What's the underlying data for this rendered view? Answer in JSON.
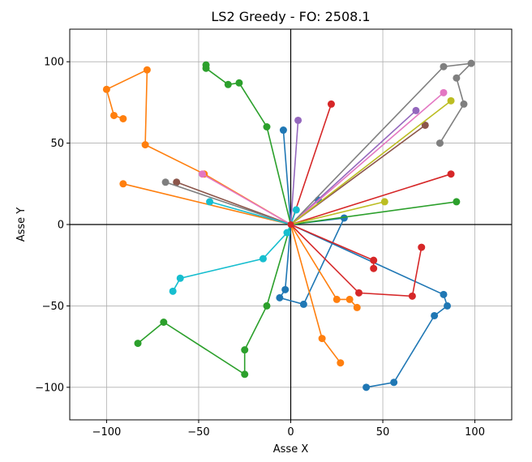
{
  "chart_data": {
    "type": "line",
    "title": "LS2 Greedy - FO: 2508.1",
    "xlabel": "Asse X",
    "ylabel": "Asse Y",
    "xlim": [
      -120,
      120
    ],
    "ylim": [
      -120,
      120
    ],
    "xticks": [
      -100,
      -50,
      0,
      50,
      100
    ],
    "yticks": [
      -100,
      -50,
      0,
      50,
      100
    ],
    "xtick_labels": [
      "−100",
      "−50",
      "0",
      "50",
      "100"
    ],
    "ytick_labels": [
      "−100",
      "−50",
      "0",
      "50",
      "100"
    ],
    "grid": true,
    "reference_lines": {
      "x": 0,
      "y": 0
    },
    "depot": [
      0,
      0
    ],
    "series": [
      {
        "color": "#1f77b4",
        "points": [
          [
            0,
            0
          ],
          [
            -4,
            58
          ]
        ]
      },
      {
        "color": "#1f77b4",
        "points": [
          [
            0,
            0
          ],
          [
            15,
            15
          ]
        ]
      },
      {
        "color": "#1f77b4",
        "points": [
          [
            0,
            0
          ],
          [
            29,
            4
          ],
          [
            7,
            -49
          ],
          [
            -6,
            -45
          ],
          [
            -3,
            -40
          ],
          [
            0,
            0
          ]
        ]
      },
      {
        "color": "#1f77b4",
        "points": [
          [
            0,
            0
          ],
          [
            83,
            -43
          ],
          [
            85,
            -50
          ],
          [
            78,
            -56
          ],
          [
            56,
            -97
          ],
          [
            41,
            -100
          ]
        ]
      },
      {
        "color": "#ff7f0e",
        "points": [
          [
            0,
            0
          ],
          [
            -47,
            31
          ],
          [
            -79,
            49
          ],
          [
            -78,
            95
          ],
          [
            -100,
            83
          ],
          [
            -96,
            67
          ],
          [
            -91,
            65
          ]
        ]
      },
      {
        "color": "#ff7f0e",
        "points": [
          [
            0,
            0
          ],
          [
            -91,
            25
          ]
        ]
      },
      {
        "color": "#ff7f0e",
        "points": [
          [
            0,
            0
          ],
          [
            25,
            -46
          ],
          [
            32,
            -46
          ],
          [
            36,
            -51
          ]
        ]
      },
      {
        "color": "#ff7f0e",
        "points": [
          [
            0,
            0
          ],
          [
            17,
            -70
          ],
          [
            27,
            -85
          ]
        ]
      },
      {
        "color": "#2ca02c",
        "points": [
          [
            0,
            0
          ],
          [
            -13,
            60
          ],
          [
            -28,
            87
          ],
          [
            -34,
            86
          ],
          [
            -46,
            96
          ],
          [
            -46,
            98
          ]
        ]
      },
      {
        "color": "#2ca02c",
        "points": [
          [
            0,
            0
          ],
          [
            -13,
            -50
          ],
          [
            -25,
            -77
          ],
          [
            -25,
            -92
          ],
          [
            -69,
            -60
          ],
          [
            -83,
            -73
          ]
        ]
      },
      {
        "color": "#2ca02c",
        "points": [
          [
            0,
            0
          ],
          [
            90,
            14
          ]
        ]
      },
      {
        "color": "#d62728",
        "points": [
          [
            0,
            0
          ],
          [
            22,
            74
          ]
        ]
      },
      {
        "color": "#d62728",
        "points": [
          [
            0,
            0
          ],
          [
            87,
            31
          ]
        ]
      },
      {
        "color": "#d62728",
        "points": [
          [
            0,
            0
          ],
          [
            45,
            -22
          ],
          [
            45,
            -27
          ]
        ]
      },
      {
        "color": "#d62728",
        "points": [
          [
            0,
            0
          ],
          [
            37,
            -42
          ],
          [
            66,
            -44
          ],
          [
            71,
            -14
          ]
        ]
      },
      {
        "color": "#9467bd",
        "points": [
          [
            0,
            0
          ],
          [
            4,
            64
          ]
        ]
      },
      {
        "color": "#9467bd",
        "points": [
          [
            0,
            0
          ],
          [
            68,
            70
          ]
        ]
      },
      {
        "color": "#8c564b",
        "points": [
          [
            0,
            0
          ],
          [
            -62,
            26
          ]
        ]
      },
      {
        "color": "#8c564b",
        "points": [
          [
            0,
            0
          ],
          [
            73,
            61
          ]
        ]
      },
      {
        "color": "#e377c2",
        "points": [
          [
            0,
            0
          ],
          [
            -48,
            31
          ]
        ]
      },
      {
        "color": "#e377c2",
        "points": [
          [
            0,
            0
          ],
          [
            83,
            81
          ]
        ]
      },
      {
        "color": "#7f7f7f",
        "points": [
          [
            0,
            0
          ],
          [
            -68,
            26
          ]
        ]
      },
      {
        "color": "#7f7f7f",
        "points": [
          [
            0,
            0
          ],
          [
            83,
            97
          ],
          [
            98,
            99
          ],
          [
            90,
            90
          ],
          [
            94,
            74
          ],
          [
            81,
            50
          ]
        ]
      },
      {
        "color": "#bcbd22",
        "points": [
          [
            0,
            0
          ],
          [
            87,
            76
          ]
        ]
      },
      {
        "color": "#bcbd22",
        "points": [
          [
            0,
            0
          ],
          [
            51,
            14
          ]
        ]
      },
      {
        "color": "#17becf",
        "points": [
          [
            0,
            0
          ],
          [
            -44,
            14
          ]
        ]
      },
      {
        "color": "#17becf",
        "points": [
          [
            0,
            0
          ],
          [
            3,
            9
          ]
        ]
      },
      {
        "color": "#17becf",
        "points": [
          [
            0,
            0
          ],
          [
            -2,
            -5
          ],
          [
            -15,
            -21
          ],
          [
            -60,
            -33
          ],
          [
            -64,
            -41
          ]
        ]
      }
    ]
  }
}
